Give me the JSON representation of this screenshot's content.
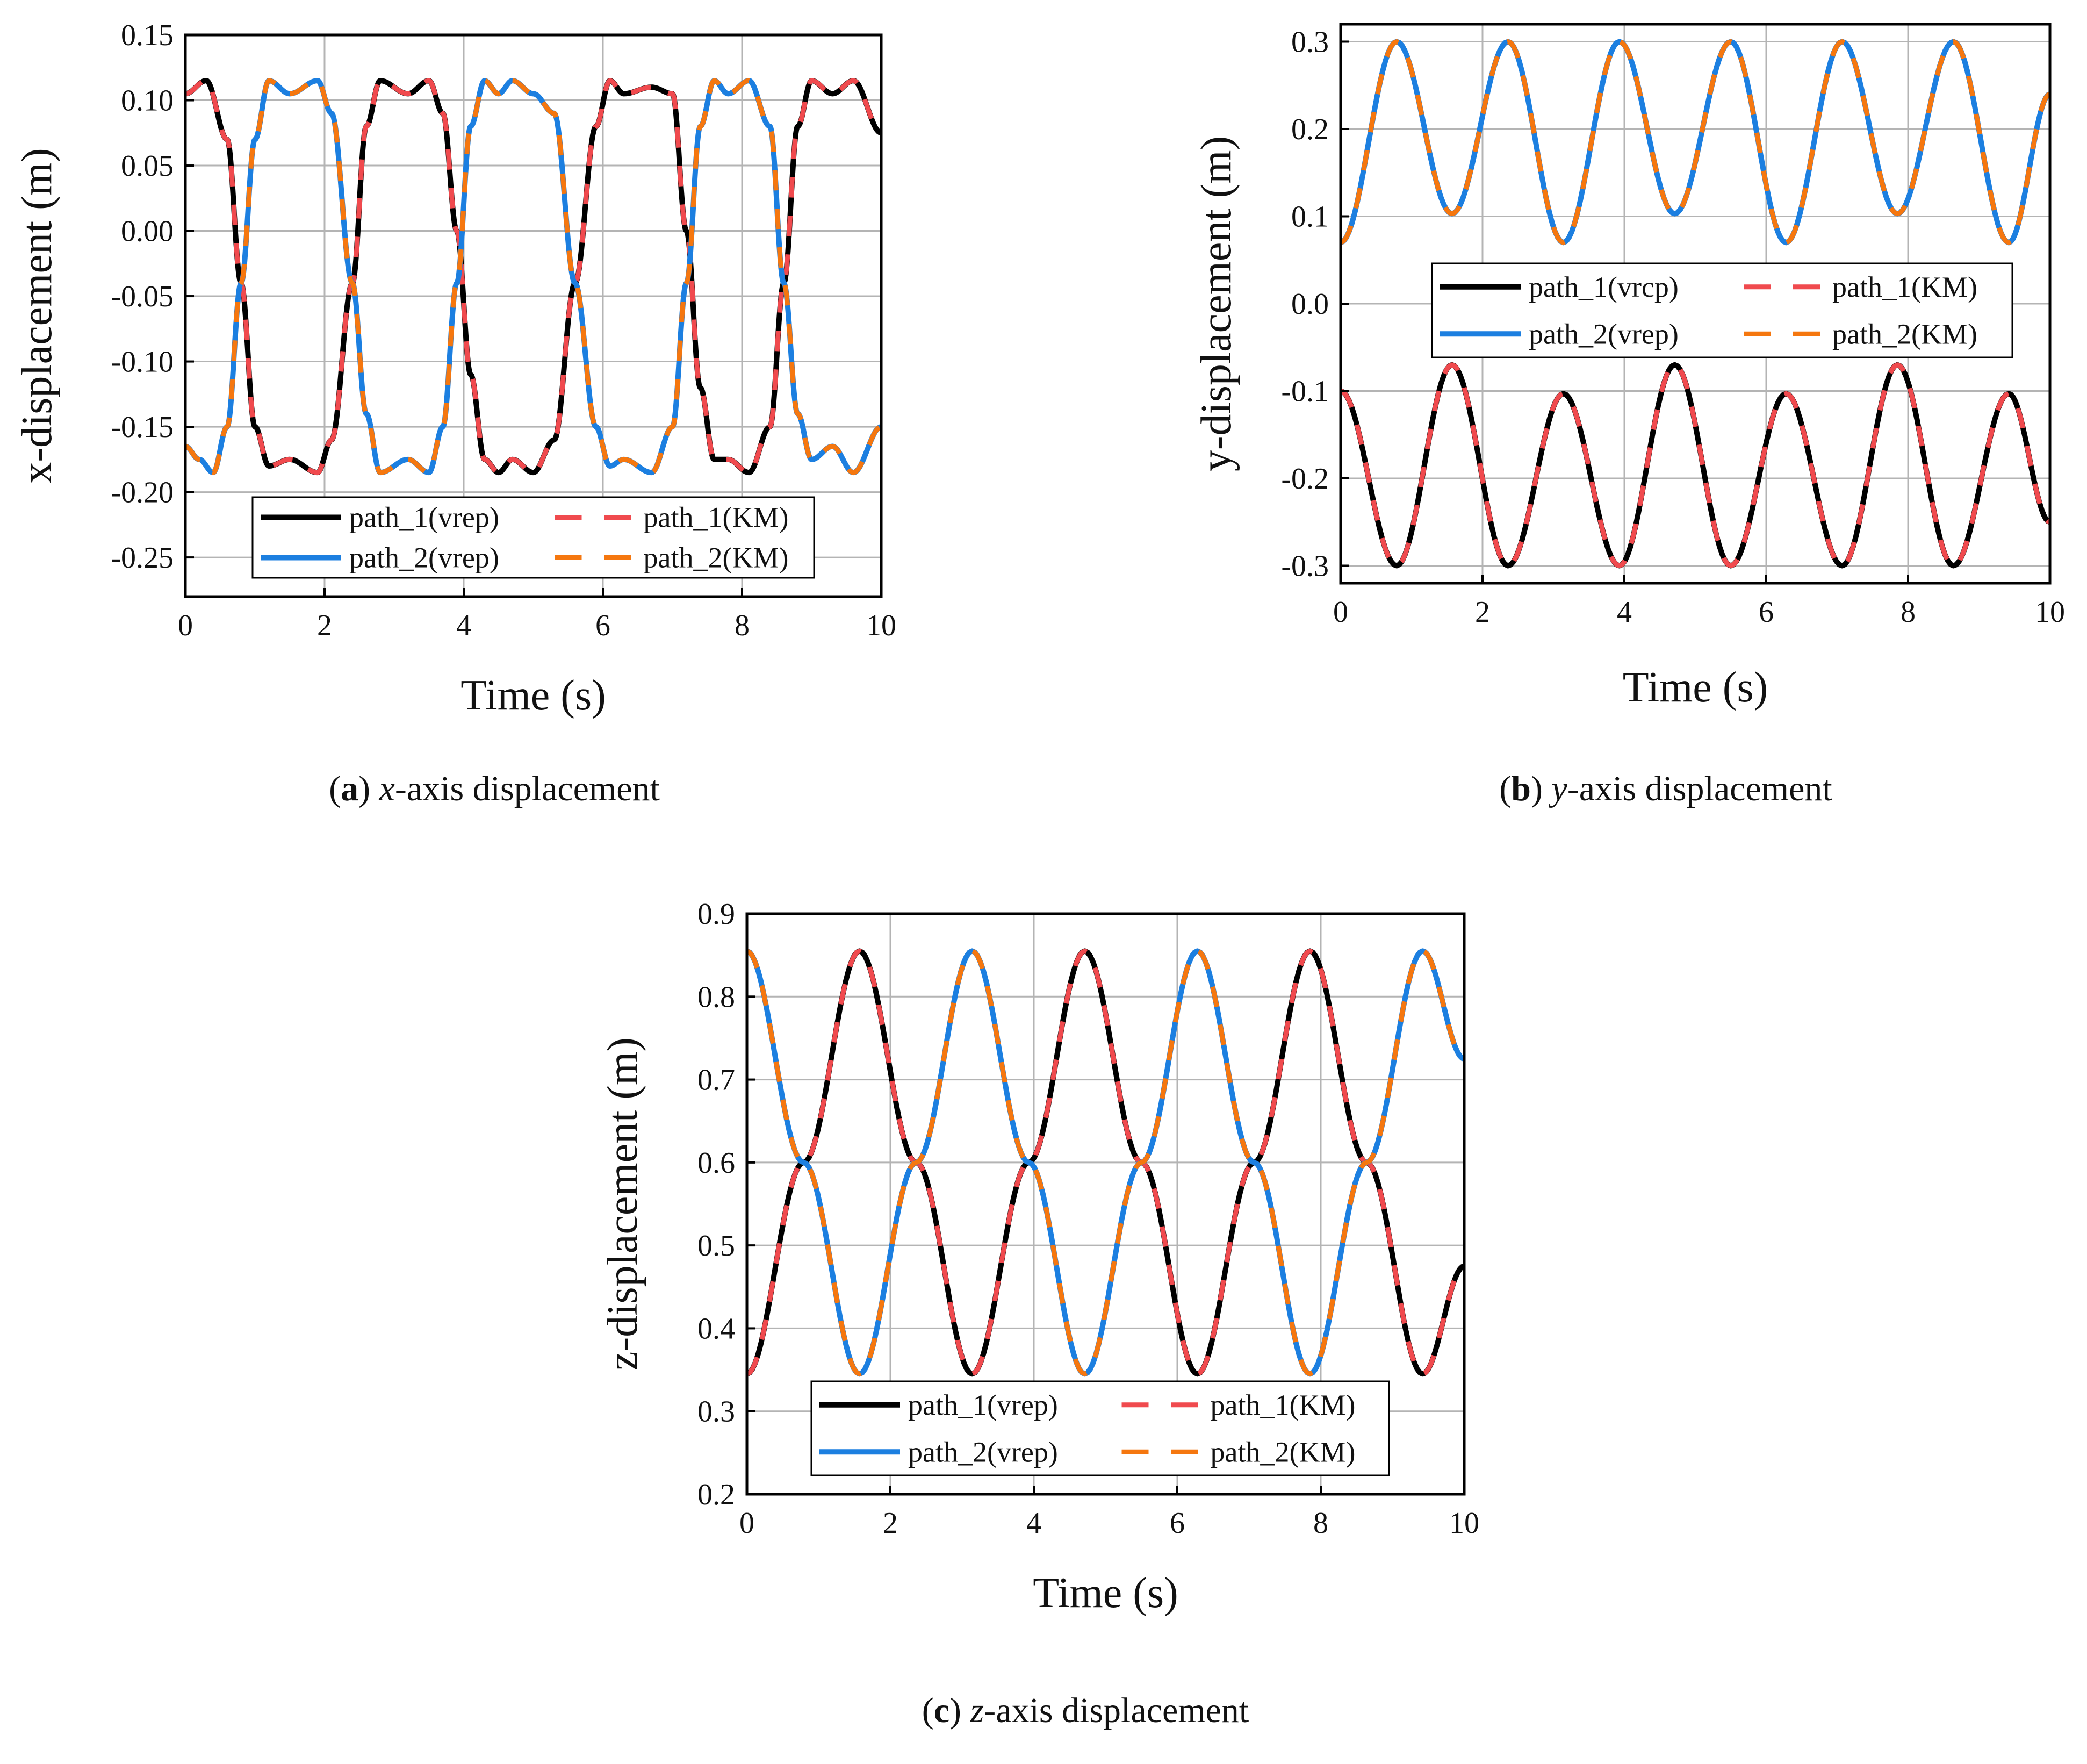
{
  "figure": {
    "captions": [
      {
        "letter": "a",
        "open": "(",
        "close": ")",
        "var": "x",
        "rest": "-axis displacement"
      },
      {
        "letter": "b",
        "open": "(",
        "close": ")",
        "var": "y",
        "rest": "-axis displacement"
      },
      {
        "letter": "c",
        "open": "(",
        "close": ")",
        "var": "z",
        "rest": "-axis displacement"
      }
    ]
  },
  "colors": {
    "path_1_vrep": "#000000",
    "path_1_KM": "#f04a4e",
    "path_2_vrep": "#1c7fe0",
    "path_2_KM": "#f5770f",
    "grid": "#b4b4b4",
    "axis": "#000000"
  },
  "chart_data": [
    {
      "id": "a",
      "type": "line",
      "xlabel": "Time (s)",
      "ylabel": "x-displacement (m)",
      "xlim": [
        0,
        10
      ],
      "ylim": [
        -0.28,
        0.15
      ],
      "xticks": [
        0,
        2,
        4,
        6,
        8,
        10
      ],
      "xtick_labels": [
        "0",
        "2",
        "4",
        "6",
        "8",
        "10"
      ],
      "yticks": [
        0.15,
        0.1,
        0.05,
        0.0,
        -0.05,
        -0.1,
        -0.15,
        -0.2,
        -0.25
      ],
      "ytick_labels": [
        "0.15",
        "0.10",
        "0.05",
        "0.00",
        "-0.05",
        "-0.10",
        "-0.15",
        "-0.20",
        "-0.25"
      ],
      "grid": true,
      "legend_position": "bottom-center",
      "legend": [
        "path_1(vrep)",
        "path_1(KM)",
        "path_2(vrep)",
        "path_2(KM)"
      ],
      "series": [
        {
          "name": "path_1(vrep)",
          "style": "solid",
          "x": [
            0,
            0.3,
            0.6,
            0.8,
            1.0,
            1.2,
            1.5,
            1.9,
            2.1,
            2.4,
            2.6,
            2.8,
            3.2,
            3.5,
            3.7,
            3.9,
            4.1,
            4.3,
            4.5,
            4.7,
            5.0,
            5.3,
            5.6,
            5.9,
            6.1,
            6.3,
            6.7,
            7.0,
            7.2,
            7.4,
            7.6,
            7.8,
            8.1,
            8.4,
            8.6,
            8.8,
            9.0,
            9.3,
            9.6,
            10.0
          ],
          "y": [
            0.105,
            0.115,
            0.07,
            -0.04,
            -0.15,
            -0.18,
            -0.175,
            -0.185,
            -0.16,
            -0.04,
            0.08,
            0.115,
            0.105,
            0.115,
            0.09,
            0.0,
            -0.11,
            -0.175,
            -0.185,
            -0.175,
            -0.185,
            -0.16,
            -0.04,
            0.08,
            0.115,
            0.105,
            0.11,
            0.105,
            0.0,
            -0.12,
            -0.175,
            -0.175,
            -0.185,
            -0.15,
            -0.04,
            0.08,
            0.115,
            0.105,
            0.115,
            0.075
          ]
        },
        {
          "name": "path_1(KM)",
          "style": "dashed",
          "x": [
            0,
            0.3,
            0.6,
            0.8,
            1.0,
            1.2,
            1.5,
            1.9,
            2.1,
            2.4,
            2.6,
            2.8,
            3.2,
            3.5,
            3.7,
            3.9,
            4.1,
            4.3,
            4.5,
            4.7,
            5.0,
            5.3,
            5.6,
            5.9,
            6.1,
            6.3,
            6.7,
            7.0,
            7.2,
            7.4,
            7.6,
            7.8,
            8.1,
            8.4,
            8.6,
            8.8,
            9.0,
            9.3,
            9.6,
            10.0
          ],
          "y": [
            0.105,
            0.115,
            0.07,
            -0.04,
            -0.15,
            -0.18,
            -0.175,
            -0.185,
            -0.16,
            -0.04,
            0.08,
            0.115,
            0.105,
            0.115,
            0.09,
            0.0,
            -0.11,
            -0.175,
            -0.185,
            -0.175,
            -0.185,
            -0.16,
            -0.04,
            0.08,
            0.115,
            0.105,
            0.11,
            0.105,
            0.0,
            -0.12,
            -0.175,
            -0.175,
            -0.185,
            -0.15,
            -0.04,
            0.08,
            0.115,
            0.105,
            0.115,
            0.075
          ]
        },
        {
          "name": "path_2(vrep)",
          "style": "solid",
          "x": [
            0,
            0.2,
            0.4,
            0.6,
            0.8,
            1.0,
            1.2,
            1.5,
            1.9,
            2.1,
            2.4,
            2.6,
            2.8,
            3.2,
            3.5,
            3.7,
            3.9,
            4.1,
            4.3,
            4.5,
            4.7,
            5.0,
            5.3,
            5.6,
            5.9,
            6.1,
            6.3,
            6.7,
            7.0,
            7.2,
            7.4,
            7.6,
            7.8,
            8.1,
            8.4,
            8.6,
            8.8,
            9.0,
            9.3,
            9.6,
            10.0
          ],
          "y": [
            -0.165,
            -0.175,
            -0.185,
            -0.15,
            -0.04,
            0.07,
            0.115,
            0.105,
            0.115,
            0.09,
            -0.04,
            -0.14,
            -0.185,
            -0.175,
            -0.185,
            -0.15,
            -0.04,
            0.08,
            0.115,
            0.105,
            0.115,
            0.105,
            0.09,
            -0.04,
            -0.15,
            -0.18,
            -0.175,
            -0.185,
            -0.15,
            -0.04,
            0.08,
            0.115,
            0.105,
            0.115,
            0.08,
            -0.04,
            -0.14,
            -0.175,
            -0.165,
            -0.185,
            -0.15
          ]
        },
        {
          "name": "path_2(KM)",
          "style": "dashed",
          "x": [
            0,
            0.2,
            0.4,
            0.6,
            0.8,
            1.0,
            1.2,
            1.5,
            1.9,
            2.1,
            2.4,
            2.6,
            2.8,
            3.2,
            3.5,
            3.7,
            3.9,
            4.1,
            4.3,
            4.5,
            4.7,
            5.0,
            5.3,
            5.6,
            5.9,
            6.1,
            6.3,
            6.7,
            7.0,
            7.2,
            7.4,
            7.6,
            7.8,
            8.1,
            8.4,
            8.6,
            8.8,
            9.0,
            9.3,
            9.6,
            10.0
          ],
          "y": [
            -0.165,
            -0.175,
            -0.185,
            -0.15,
            -0.04,
            0.07,
            0.115,
            0.105,
            0.115,
            0.09,
            -0.04,
            -0.14,
            -0.185,
            -0.175,
            -0.185,
            -0.15,
            -0.04,
            0.08,
            0.115,
            0.105,
            0.115,
            0.105,
            0.09,
            -0.04,
            -0.15,
            -0.18,
            -0.175,
            -0.185,
            -0.15,
            -0.04,
            0.08,
            0.115,
            0.105,
            0.115,
            0.08,
            -0.04,
            -0.14,
            -0.175,
            -0.165,
            -0.185,
            -0.15
          ]
        }
      ]
    },
    {
      "id": "b",
      "type": "line",
      "xlabel": "Time (s)",
      "ylabel": "y-displacement (m)",
      "xlim": [
        0,
        10
      ],
      "ylim": [
        -0.32,
        0.32
      ],
      "xticks": [
        0,
        2,
        4,
        6,
        8,
        10
      ],
      "xtick_labels": [
        "0",
        "2",
        "4",
        "6",
        "8",
        "10"
      ],
      "yticks": [
        0.3,
        0.2,
        0.1,
        0.0,
        -0.1,
        -0.2,
        -0.3
      ],
      "ytick_labels": [
        "0.3",
        "0.2",
        "0.1",
        "0.0",
        "-0.1",
        "-0.2",
        "-0.3"
      ],
      "grid": true,
      "legend_position": "center",
      "legend": [
        "path_1(vrcp)",
        "path_1(KM)",
        "path_2(vrep)",
        "path_2(KM)"
      ],
      "series": [
        {
          "name": "path_1(vrcp)",
          "style": "solid",
          "x": [
            0,
            0.79,
            1.57,
            2.36,
            3.14,
            3.93,
            4.71,
            5.5,
            6.28,
            7.07,
            7.85,
            8.64,
            9.42,
            10.0
          ],
          "y": [
            -0.1,
            -0.3,
            -0.07,
            -0.3,
            -0.103,
            -0.3,
            -0.07,
            -0.3,
            -0.103,
            -0.3,
            -0.07,
            -0.3,
            -0.103,
            -0.25
          ]
        },
        {
          "name": "path_1(KM)",
          "style": "dashed",
          "x": [
            0,
            0.79,
            1.57,
            2.36,
            3.14,
            3.93,
            4.71,
            5.5,
            6.28,
            7.07,
            7.85,
            8.64,
            9.42,
            10.0
          ],
          "y": [
            -0.1,
            -0.3,
            -0.07,
            -0.3,
            -0.103,
            -0.3,
            -0.07,
            -0.3,
            -0.103,
            -0.3,
            -0.07,
            -0.3,
            -0.103,
            -0.25
          ]
        },
        {
          "name": "path_2(vrep)",
          "style": "solid",
          "x": [
            0,
            0.79,
            1.57,
            2.36,
            3.14,
            3.93,
            4.71,
            5.5,
            6.28,
            7.07,
            7.85,
            8.64,
            9.42,
            10.0
          ],
          "y": [
            0.07,
            0.3,
            0.103,
            0.3,
            0.07,
            0.3,
            0.103,
            0.3,
            0.07,
            0.3,
            0.103,
            0.3,
            0.07,
            0.24
          ]
        },
        {
          "name": "path_2(KM)",
          "style": "dashed",
          "x": [
            0,
            0.79,
            1.57,
            2.36,
            3.14,
            3.93,
            4.71,
            5.5,
            6.28,
            7.07,
            7.85,
            8.64,
            9.42,
            10.0
          ],
          "y": [
            0.07,
            0.3,
            0.103,
            0.3,
            0.07,
            0.3,
            0.103,
            0.3,
            0.07,
            0.3,
            0.103,
            0.3,
            0.07,
            0.24
          ]
        }
      ]
    },
    {
      "id": "c",
      "type": "line",
      "xlabel": "Time (s)",
      "ylabel": "z-displacement (m)",
      "xlim": [
        0,
        10
      ],
      "ylim": [
        0.2,
        0.9
      ],
      "xticks": [
        0,
        2,
        4,
        6,
        8,
        10
      ],
      "xtick_labels": [
        "0",
        "2",
        "4",
        "6",
        "8",
        "10"
      ],
      "yticks": [
        0.9,
        0.8,
        0.7,
        0.6,
        0.5,
        0.4,
        0.3,
        0.2
      ],
      "ytick_labels": [
        "0.9",
        "0.8",
        "0.7",
        "0.6",
        "0.5",
        "0.4",
        "0.3",
        "0.2"
      ],
      "grid": true,
      "legend_position": "bottom-center",
      "legend": [
        "path_1(vrep)",
        "path_1(KM)",
        "path_2(vrep)",
        "path_2(KM)"
      ],
      "series": [
        {
          "name": "path_1(vrep)",
          "style": "solid",
          "x": [
            0,
            0.79,
            1.57,
            2.36,
            3.14,
            3.93,
            4.71,
            5.5,
            6.28,
            7.07,
            7.85,
            8.64,
            9.42,
            10.0
          ],
          "y": [
            0.345,
            0.6,
            0.855,
            0.6,
            0.345,
            0.6,
            0.855,
            0.6,
            0.345,
            0.6,
            0.855,
            0.6,
            0.345,
            0.475
          ]
        },
        {
          "name": "path_1(KM)",
          "style": "dashed",
          "x": [
            0,
            0.79,
            1.57,
            2.36,
            3.14,
            3.93,
            4.71,
            5.5,
            6.28,
            7.07,
            7.85,
            8.64,
            9.42,
            10.0
          ],
          "y": [
            0.345,
            0.6,
            0.855,
            0.6,
            0.345,
            0.6,
            0.855,
            0.6,
            0.345,
            0.6,
            0.855,
            0.6,
            0.345,
            0.475
          ]
        },
        {
          "name": "path_2(vrep)",
          "style": "solid",
          "x": [
            0,
            0.79,
            1.57,
            2.36,
            3.14,
            3.93,
            4.71,
            5.5,
            6.28,
            7.07,
            7.85,
            8.64,
            9.42,
            10.0
          ],
          "y": [
            0.855,
            0.6,
            0.345,
            0.6,
            0.855,
            0.6,
            0.345,
            0.6,
            0.855,
            0.6,
            0.345,
            0.6,
            0.855,
            0.725
          ]
        },
        {
          "name": "path_2(KM)",
          "style": "dashed",
          "x": [
            0,
            0.79,
            1.57,
            2.36,
            3.14,
            3.93,
            4.71,
            5.5,
            6.28,
            7.07,
            7.85,
            8.64,
            9.42,
            10.0
          ],
          "y": [
            0.855,
            0.6,
            0.345,
            0.6,
            0.855,
            0.6,
            0.345,
            0.6,
            0.855,
            0.6,
            0.345,
            0.6,
            0.855,
            0.725
          ]
        }
      ]
    }
  ]
}
